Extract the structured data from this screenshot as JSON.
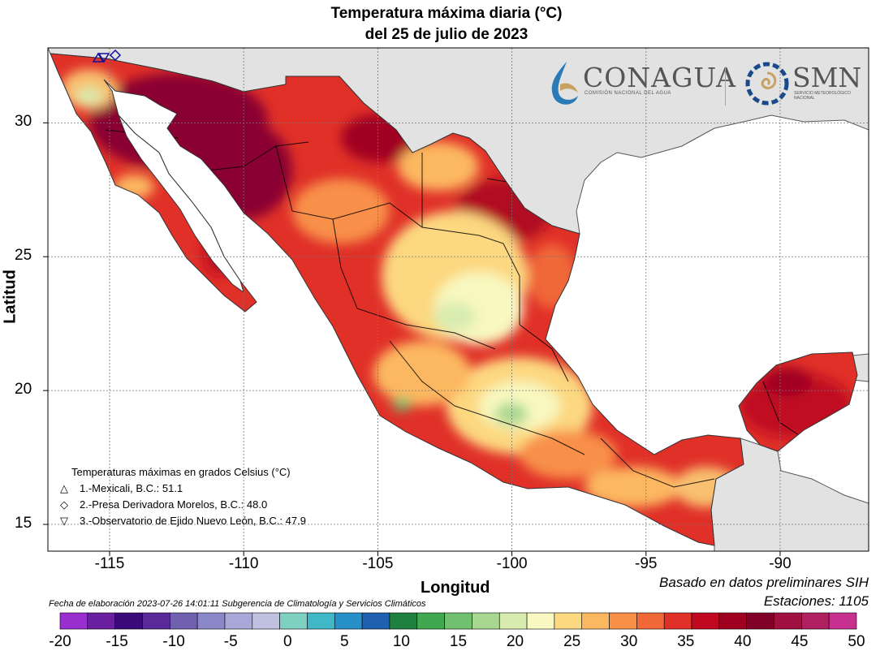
{
  "title_line1": "Temperatura máxima diaria (°C)",
  "title_line2": "del 25 de julio de 2023",
  "x_axis_label": "Longitud",
  "y_axis_label": "Latitud",
  "x_ticks": [
    "-115",
    "-110",
    "-105",
    "-100",
    "-95",
    "-90"
  ],
  "y_ticks": [
    "30",
    "25",
    "20",
    "15"
  ],
  "x_tick_values": [
    -115,
    -110,
    -105,
    -100,
    -95,
    -90
  ],
  "y_tick_values": [
    30,
    25,
    20,
    15
  ],
  "lon_range": [
    -117.3,
    -86.7
  ],
  "lat_range": [
    14.0,
    32.8
  ],
  "legend": {
    "heading": "Temperaturas máximas en grados Celsius (°C)",
    "items": [
      {
        "symbol": "triangle-up",
        "text": "1.-Mexicali, B.C.: 51.1"
      },
      {
        "symbol": "diamond",
        "text": "2.-Presa Derivadora Morelos, B.C.: 48.0"
      },
      {
        "symbol": "triangle-down",
        "text": "3.-Observatorio de Ejido Nuevo León, B.C.: 47.9"
      }
    ]
  },
  "basado": "Basado en datos preliminares SIH",
  "estaciones": "Estaciones:  1105",
  "fecha": "Fecha de elaboración 2023-07-26 14:01:11 Subgerencia de Climatología y Servicios Climáticos",
  "logos": {
    "conagua": "CONAGUA",
    "conagua_sub": "COMISIÓN NACIONAL DEL AGUA",
    "smn": "SMN",
    "smn_sub": "SERVICIO METEOROLÓGICO NACIONAL"
  },
  "colorbar": {
    "labels": [
      "-20",
      "-15",
      "-10",
      "-5",
      "0",
      "5",
      "10",
      "15",
      "20",
      "25",
      "30",
      "35",
      "40",
      "45",
      "50"
    ],
    "colors": [
      "#9a2fd0",
      "#6a1fa0",
      "#3b0a7a",
      "#5a2a9a",
      "#7060b0",
      "#8a88c8",
      "#a8a8d8",
      "#c0c0e0",
      "#7ed0c0",
      "#40b8c8",
      "#2890c8",
      "#2060b0",
      "#208040",
      "#40a850",
      "#70c070",
      "#a8d890",
      "#d8ecb0",
      "#f8f8c0",
      "#fcd880",
      "#fcb860",
      "#f89048",
      "#f06838",
      "#e03028",
      "#c00820",
      "#a00020",
      "#800028",
      "#a01040",
      "#b02060",
      "#c83090"
    ]
  },
  "chart_data": {
    "type": "heatmap",
    "title": "Temperatura máxima diaria (°C) del 25 de julio de 2023",
    "xlabel": "Longitud",
    "ylabel": "Latitud",
    "xlim": [
      -117.3,
      -86.7
    ],
    "ylim": [
      14.0,
      32.8
    ],
    "value_range": [
      -20,
      50
    ],
    "grid": true,
    "stations": [
      {
        "name": "Mexicali, B.C.",
        "value": 51.1,
        "lon": -115.4,
        "lat": 32.6
      },
      {
        "name": "Presa Derivadora Morelos, B.C.",
        "value": 48.0,
        "lon": -114.9,
        "lat": 32.7
      },
      {
        "name": "Observatorio de Ejido Nuevo León, B.C.",
        "value": 47.9,
        "lon": -115.2,
        "lat": 32.5
      }
    ]
  }
}
